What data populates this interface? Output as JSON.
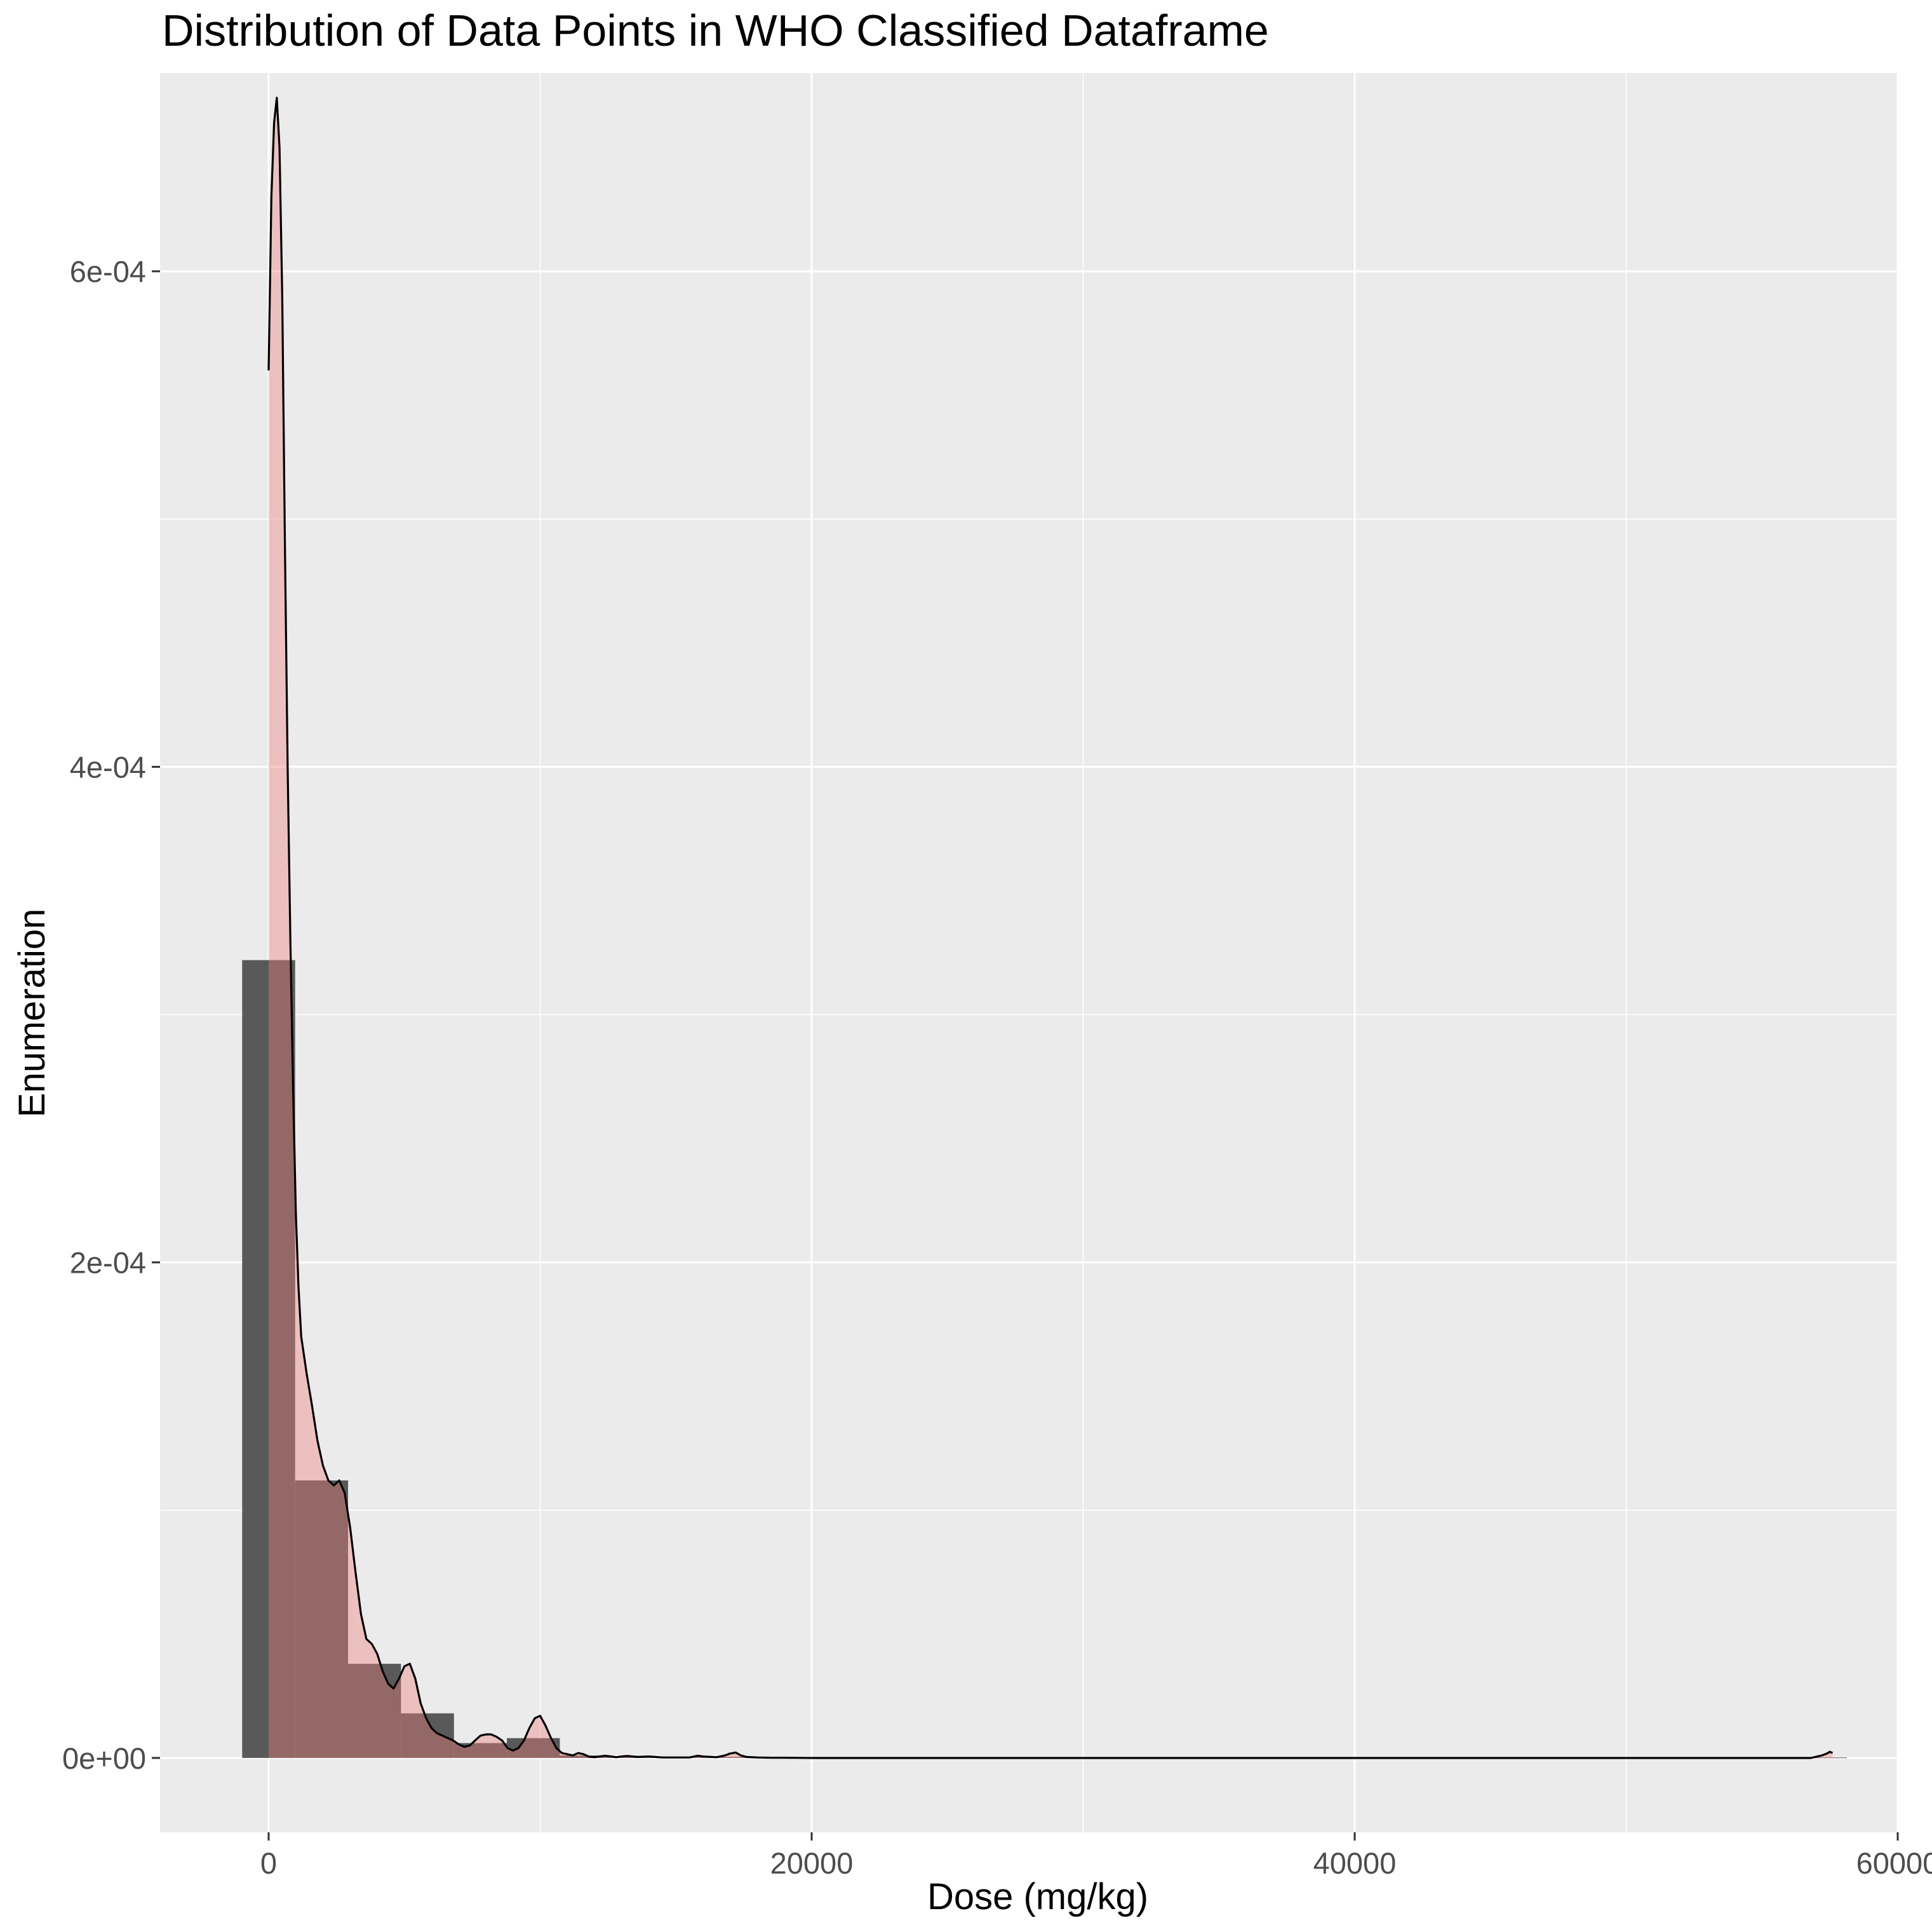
{
  "chart_data": {
    "type": "histogram",
    "title": "Distribution of Data Points in WHO Classified Dataframe",
    "xlabel": "Dose (mg/kg)",
    "ylabel": "Enumeration",
    "xlim": [
      -4000,
      60000
    ],
    "ylim": [
      -3e-05,
      0.00068
    ],
    "x_ticks": [
      0,
      20000,
      40000,
      60000
    ],
    "x_tick_labels": [
      "0",
      "20000",
      "40000",
      "60000"
    ],
    "y_ticks": [
      0,
      0.0002,
      0.0004,
      0.0006
    ],
    "y_tick_labels": [
      "0e+00",
      "2e-04",
      "4e-04",
      "6e-04"
    ],
    "grid": true,
    "legend": "none",
    "histogram": {
      "fill": "#595959",
      "bin_width": 1950,
      "bins": [
        {
          "x_start": -975,
          "x_end": 975,
          "value": 0.000322
        },
        {
          "x_start": 975,
          "x_end": 2925,
          "value": 0.000112
        },
        {
          "x_start": 2925,
          "x_end": 4875,
          "value": 3.8e-05
        },
        {
          "x_start": 4875,
          "x_end": 6825,
          "value": 1.8e-05
        },
        {
          "x_start": 6825,
          "x_end": 8775,
          "value": 6e-06
        },
        {
          "x_start": 8775,
          "x_end": 10725,
          "value": 8e-06
        },
        {
          "x_start": 10725,
          "x_end": 12675,
          "value": 1e-06
        },
        {
          "x_start": 12675,
          "x_end": 14625,
          "value": 5e-07
        },
        {
          "x_start": 14625,
          "x_end": 16575,
          "value": 4e-07
        },
        {
          "x_start": 16575,
          "x_end": 18525,
          "value": 4e-07
        },
        {
          "x_start": 56625,
          "x_end": 58125,
          "value": 2e-07
        }
      ]
    },
    "density": {
      "fill": "#f08080",
      "line": "#000000",
      "x": [
        0,
        100,
        200,
        300,
        400,
        500,
        600,
        700,
        800,
        900,
        1000,
        1100,
        1200,
        1400,
        1600,
        1800,
        2000,
        2200,
        2400,
        2600,
        2800,
        3000,
        3200,
        3400,
        3600,
        3800,
        4000,
        4200,
        4400,
        4600,
        4800,
        5000,
        5200,
        5400,
        5600,
        5800,
        6000,
        6200,
        6400,
        6600,
        6800,
        7000,
        7200,
        7400,
        7600,
        7800,
        8000,
        8200,
        8400,
        8600,
        8800,
        9000,
        9200,
        9400,
        9600,
        9800,
        10000,
        10200,
        10400,
        10600,
        10800,
        11000,
        11200,
        11400,
        11600,
        11800,
        12000,
        12200,
        12400,
        12600,
        12800,
        13000,
        13200,
        13400,
        13600,
        13800,
        14000,
        14500,
        15000,
        15500,
        15800,
        16000,
        16500,
        16800,
        17000,
        17200,
        17400,
        17600,
        18000,
        18500,
        19000,
        20000,
        30000,
        40000,
        50000,
        56800,
        57000,
        57200,
        57400,
        57500,
        57600
      ],
      "y": [
        0.00056,
        0.00063,
        0.00066,
        0.00067,
        0.00065,
        0.00059,
        0.00049,
        0.0004,
        0.00033,
        0.00027,
        0.00022,
        0.00019,
        0.00017,
        0.000155,
        0.000142,
        0.000128,
        0.000118,
        0.000112,
        0.00011,
        0.000112,
        0.000107,
        9.3e-05,
        7.5e-05,
        5.8e-05,
        4.8e-05,
        4.6e-05,
        4.2e-05,
        3.5e-05,
        3e-05,
        2.8e-05,
        3.2e-05,
        3.7e-05,
        3.8e-05,
        3.2e-05,
        2.2e-05,
        1.6e-05,
        1.2e-05,
        1e-05,
        9e-06,
        8e-06,
        7e-06,
        5.5e-06,
        4.5e-06,
        5e-06,
        7e-06,
        9e-06,
        9.5e-06,
        9.5e-06,
        8.5e-06,
        7e-06,
        4e-06,
        3e-06,
        4e-06,
        7e-06,
        1.2e-05,
        1.6e-05,
        1.7e-05,
        1.3e-05,
        8e-06,
        4e-06,
        2e-06,
        1.5e-06,
        1e-06,
        2e-06,
        1.5e-06,
        5e-07,
        3e-07,
        6e-07,
        9e-07,
        6e-07,
        3e-07,
        6e-07,
        8e-07,
        6e-07,
        4e-07,
        5e-07,
        6e-07,
        2e-07,
        2e-07,
        2e-07,
        9e-07,
        6e-07,
        3e-07,
        1e-06,
        1.8e-06,
        2.2e-06,
        1e-06,
        4e-07,
        2e-07,
        1e-07,
        1e-07,
        0,
        0,
        0,
        0,
        0,
        5e-07,
        1e-06,
        1.8e-06,
        2.5e-06,
        2e-06
      ]
    }
  }
}
